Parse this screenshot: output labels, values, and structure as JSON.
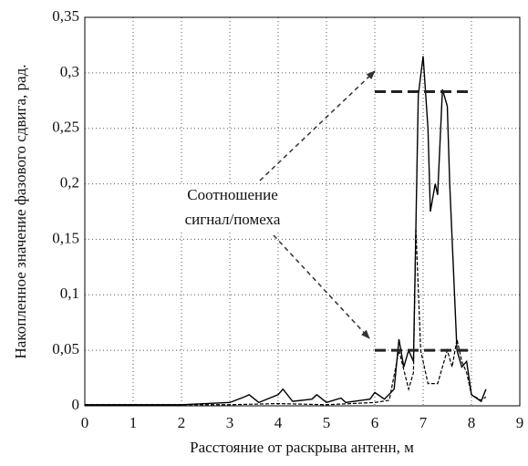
{
  "chart_data": {
    "type": "line",
    "xlabel": "Расстояние от раскрыва антенн, м",
    "ylabel": "Накопленное значение фазового сдвига, рад.",
    "annotation": [
      "Соотношение",
      "сигнал/помеха"
    ],
    "xlim": [
      0,
      9
    ],
    "xticks": [
      0,
      1,
      2,
      3,
      4,
      5,
      6,
      7,
      8,
      9
    ],
    "ylim": [
      0,
      0.35
    ],
    "yticks": [
      0,
      {
        "value": 0.05,
        "label": "0,05"
      },
      {
        "value": 0.1,
        "label": "0,1"
      },
      {
        "value": 0.15,
        "label": "0,15"
      },
      {
        "value": 0.2,
        "label": "0,2"
      },
      {
        "value": 0.25,
        "label": "0,25"
      },
      {
        "value": 0.3,
        "label": "0,3"
      },
      {
        "value": 0.35,
        "label": "0,35"
      }
    ],
    "grid": true,
    "hlines": [
      {
        "y": 0.283,
        "x": [
          6,
          8
        ]
      },
      {
        "y": 0.05,
        "x": [
          6,
          8
        ]
      }
    ],
    "series": [
      {
        "color": "#000000",
        "style": "solid",
        "x": [
          0,
          1,
          2,
          2.5,
          3,
          3.3,
          3.4,
          3.6,
          4.0,
          4.1,
          4.3,
          4.7,
          4.8,
          5.0,
          5.3,
          5.4,
          5.9,
          6.0,
          6.2,
          6.4,
          6.5,
          6.6,
          6.7,
          6.8,
          6.9,
          7.0,
          7.1,
          7.15,
          7.25,
          7.3,
          7.4,
          7.5,
          7.55,
          7.65,
          7.7,
          7.8,
          7.9,
          8.0,
          8.2,
          8.3
        ],
        "values": [
          0.001,
          0.001,
          0.001,
          0.002,
          0.003,
          0.008,
          0.01,
          0.003,
          0.01,
          0.015,
          0.004,
          0.006,
          0.01,
          0.003,
          0.007,
          0.003,
          0.006,
          0.012,
          0.006,
          0.015,
          0.06,
          0.035,
          0.05,
          0.04,
          0.28,
          0.315,
          0.25,
          0.175,
          0.2,
          0.19,
          0.285,
          0.27,
          0.2,
          0.1,
          0.05,
          0.035,
          0.04,
          0.01,
          0.004,
          0.015
        ]
      },
      {
        "color": "#000000",
        "style": "dashed",
        "x": [
          0,
          3,
          4,
          5,
          6,
          6.3,
          6.5,
          6.7,
          6.8,
          6.85,
          6.95,
          7.1,
          7.3,
          7.5,
          7.6,
          7.7,
          7.8,
          7.9,
          8.0,
          8.2,
          8.3
        ],
        "values": [
          0.001,
          0.001,
          0.002,
          0.001,
          0.003,
          0.005,
          0.05,
          0.015,
          0.03,
          0.16,
          0.05,
          0.02,
          0.02,
          0.05,
          0.035,
          0.06,
          0.04,
          0.03,
          0.01,
          0.005,
          0.008
        ]
      }
    ]
  }
}
